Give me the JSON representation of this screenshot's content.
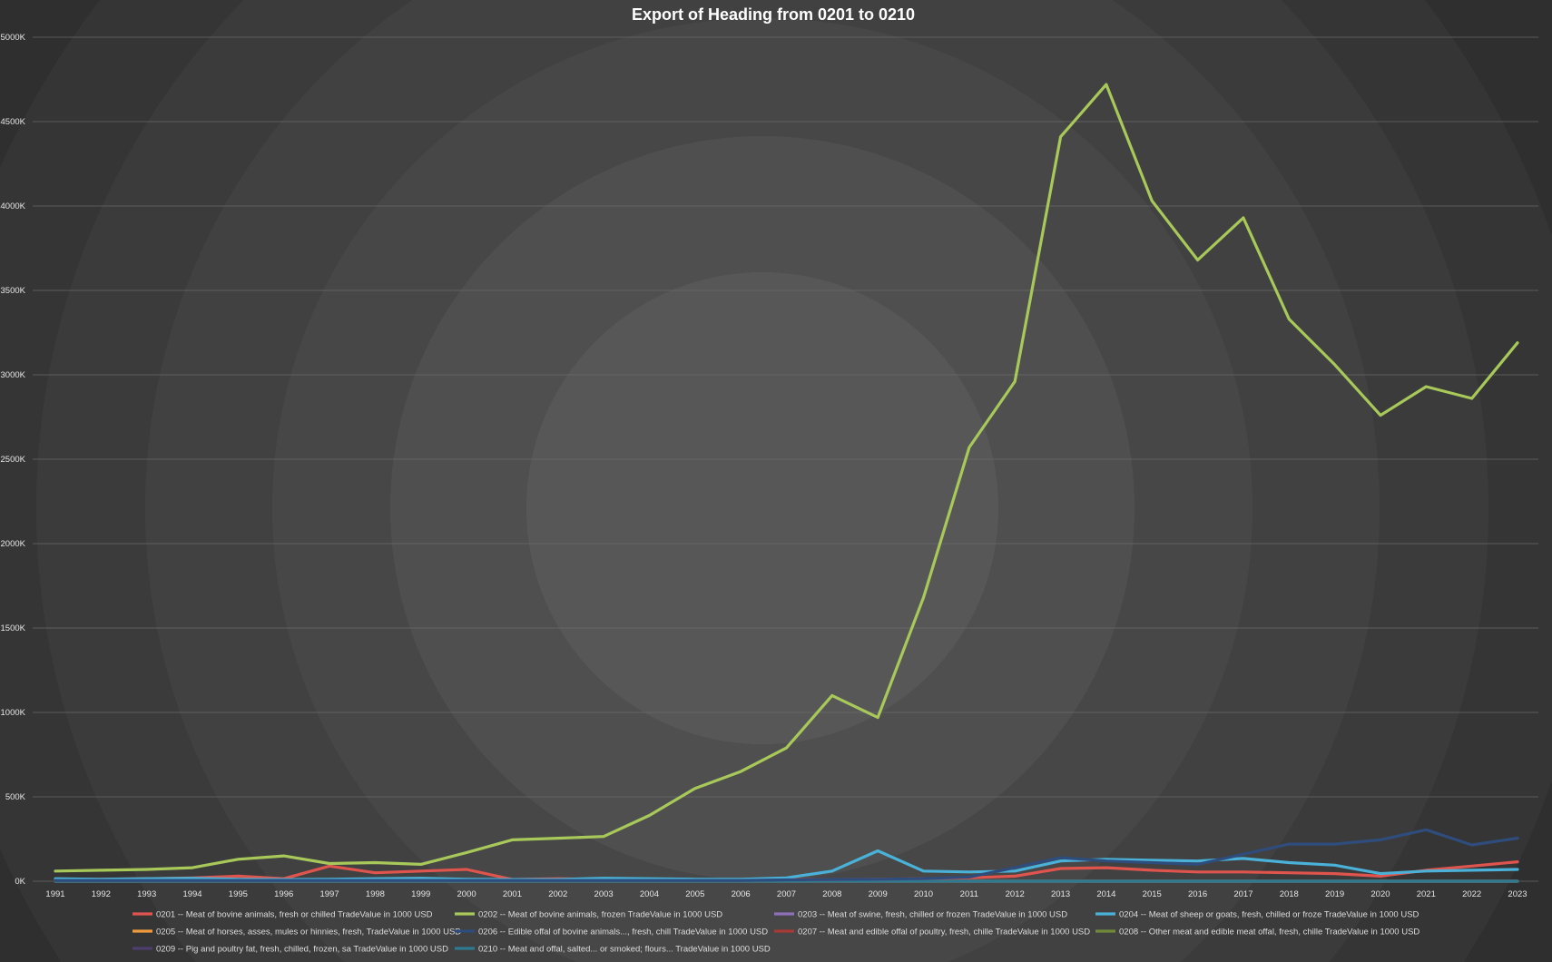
{
  "chart_data": {
    "type": "line",
    "title": "Export of Heading from 0201 to 0210",
    "xlabel": "",
    "ylabel": "",
    "ylim": [
      0,
      5000
    ],
    "yticks": [
      0,
      500,
      1000,
      1500,
      2000,
      2500,
      3000,
      3500,
      4000,
      4500,
      5000
    ],
    "ytick_labels": [
      "0K",
      "500K",
      "1000K",
      "1500K",
      "2000K",
      "2500K",
      "3000K",
      "3500K",
      "4000K",
      "4500K",
      "5000K"
    ],
    "x": [
      "1991",
      "1992",
      "1993",
      "1994",
      "1995",
      "1996",
      "1997",
      "1998",
      "1999",
      "2000",
      "2001",
      "2002",
      "2003",
      "2004",
      "2005",
      "2006",
      "2007",
      "2008",
      "2009",
      "2010",
      "2011",
      "2012",
      "2013",
      "2014",
      "2015",
      "2016",
      "2017",
      "2018",
      "2019",
      "2020",
      "2021",
      "2022",
      "2023"
    ],
    "grid": true,
    "legend_position": "bottom",
    "background": "dark radial gradient",
    "series": [
      {
        "name": "0201 -- Meat of bovine animals, fresh or chilled TradeValue in 1000 USD",
        "color": "#e0544e",
        "values": [
          10,
          12,
          15,
          20,
          30,
          15,
          90,
          50,
          60,
          70,
          10,
          15,
          10,
          10,
          8,
          8,
          10,
          10,
          12,
          15,
          20,
          30,
          75,
          80,
          65,
          55,
          55,
          50,
          45,
          30,
          65,
          90,
          115
        ]
      },
      {
        "name": "0202 -- Meat of bovine animals, frozen TradeValue in 1000 USD",
        "color": "#a8c95a",
        "values": [
          60,
          65,
          70,
          80,
          130,
          150,
          105,
          110,
          100,
          170,
          245,
          255,
          265,
          390,
          550,
          650,
          790,
          1100,
          970,
          1680,
          2570,
          2960,
          4410,
          4720,
          4030,
          3680,
          3930,
          3330,
          3060,
          2760,
          2930,
          2860,
          3190
        ]
      },
      {
        "name": "0203 -- Meat of swine, fresh, chilled or frozen TradeValue in 1000 USD",
        "color": "#8e6fb9",
        "values": [
          0,
          0,
          0,
          0,
          0,
          0,
          0,
          0,
          0,
          0,
          0,
          0,
          0,
          0,
          0,
          0,
          0,
          0,
          0,
          0,
          0,
          0,
          0,
          0,
          0,
          0,
          0,
          0,
          0,
          0,
          0,
          0,
          0
        ]
      },
      {
        "name": "0204 -- Meat of sheep or goats, fresh, chilled or froze TradeValue in 1000 USD",
        "color": "#4ab2d8",
        "values": [
          15,
          12,
          15,
          18,
          12,
          10,
          12,
          15,
          18,
          12,
          10,
          10,
          18,
          15,
          12,
          12,
          20,
          60,
          180,
          60,
          55,
          60,
          120,
          130,
          125,
          120,
          135,
          110,
          95,
          45,
          60,
          65,
          70
        ]
      },
      {
        "name": "0205 -- Meat of horses, asses, mules or hinnies, fresh, TradeValue in 1000 USD",
        "color": "#ef9a3c",
        "values": [
          0,
          0,
          0,
          0,
          0,
          0,
          0,
          0,
          0,
          0,
          0,
          0,
          0,
          0,
          0,
          0,
          0,
          0,
          0,
          0,
          0,
          0,
          0,
          0,
          0,
          0,
          0,
          0,
          0,
          0,
          0,
          0,
          0
        ]
      },
      {
        "name": "0206 -- Edible offal of bovine animals..., fresh, chill TradeValue in 1000 USD",
        "color": "#2f4d7c",
        "values": [
          5,
          5,
          5,
          5,
          5,
          5,
          5,
          5,
          5,
          5,
          5,
          5,
          5,
          5,
          5,
          5,
          8,
          10,
          12,
          15,
          25,
          80,
          140,
          120,
          110,
          100,
          160,
          220,
          220,
          245,
          305,
          215,
          255
        ]
      },
      {
        "name": "0207 -- Meat and edible offal of poultry, fresh, chille TradeValue in 1000 USD",
        "color": "#a83a36",
        "values": [
          0,
          0,
          0,
          0,
          0,
          0,
          0,
          0,
          0,
          0,
          0,
          0,
          0,
          0,
          0,
          0,
          0,
          0,
          0,
          0,
          0,
          0,
          0,
          0,
          0,
          0,
          0,
          0,
          0,
          0,
          0,
          0,
          0
        ]
      },
      {
        "name": "0208 -- Other meat and edible meat offal, fresh, chille TradeValue in 1000 USD",
        "color": "#708a3a",
        "values": [
          0,
          0,
          0,
          0,
          0,
          0,
          0,
          0,
          0,
          0,
          0,
          0,
          0,
          0,
          0,
          0,
          0,
          0,
          0,
          0,
          0,
          0,
          0,
          0,
          0,
          0,
          0,
          0,
          0,
          0,
          0,
          0,
          0
        ]
      },
      {
        "name": "0209 -- Pig and poultry fat, fresh, chilled, frozen, sa TradeValue in 1000 USD",
        "color": "#4e3f6e",
        "values": [
          0,
          0,
          0,
          0,
          0,
          0,
          0,
          0,
          0,
          0,
          0,
          0,
          0,
          0,
          0,
          0,
          0,
          0,
          0,
          0,
          0,
          0,
          0,
          0,
          0,
          0,
          0,
          0,
          0,
          0,
          0,
          0,
          0
        ]
      },
      {
        "name": "0210 -- Meat and offal, salted... or smoked; flours... TradeValue in 1000 USD",
        "color": "#2d7a91",
        "values": [
          0,
          0,
          0,
          0,
          0,
          0,
          0,
          0,
          0,
          0,
          0,
          0,
          0,
          0,
          0,
          0,
          0,
          0,
          0,
          0,
          0,
          0,
          0,
          0,
          0,
          0,
          0,
          0,
          0,
          0,
          0,
          0,
          0
        ]
      }
    ]
  }
}
